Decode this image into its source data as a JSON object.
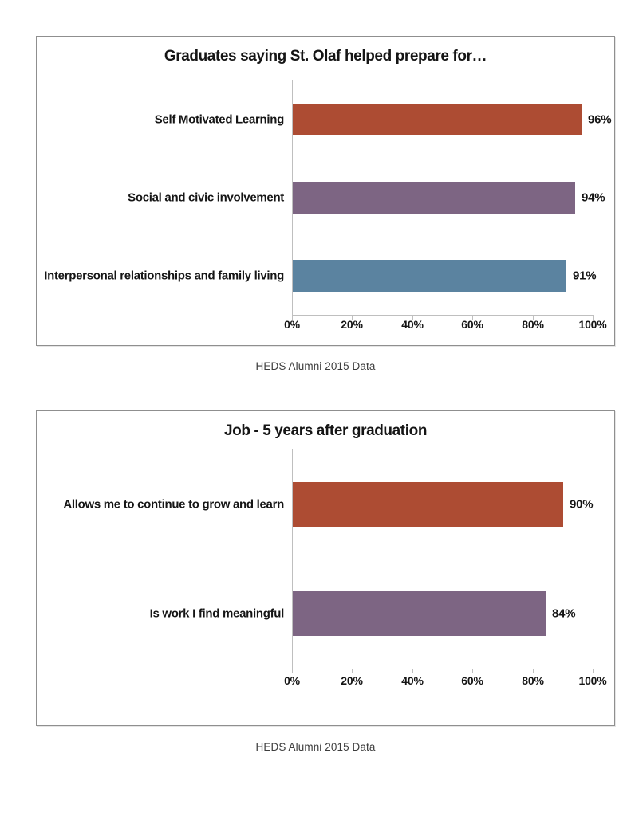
{
  "chart_data": [
    {
      "type": "bar",
      "orientation": "horizontal",
      "title": "Graduates saying St. Olaf helped prepare for…",
      "categories": [
        "Self Motivated Learning",
        "Social and civic involvement",
        "Interpersonal relationships and family living"
      ],
      "values": [
        96,
        94,
        91
      ],
      "value_labels": [
        "96%",
        "94%",
        "91%"
      ],
      "bar_colors": [
        "#AD4C33",
        "#7D6583",
        "#5B83A0"
      ],
      "x_ticks": [
        "0%",
        "20%",
        "40%",
        "60%",
        "80%",
        "100%"
      ],
      "xlim": [
        0,
        100
      ],
      "grid": false,
      "legend": "none",
      "source_note": "HEDS Alumni 2015 Data"
    },
    {
      "type": "bar",
      "orientation": "horizontal",
      "title": "Job - 5 years after graduation",
      "categories": [
        "Allows me to continue to grow and learn",
        "Is work I find meaningful"
      ],
      "values": [
        90,
        84
      ],
      "value_labels": [
        "90%",
        "84%"
      ],
      "bar_colors": [
        "#AD4C33",
        "#7D6583"
      ],
      "x_ticks": [
        "0%",
        "20%",
        "40%",
        "60%",
        "80%",
        "100%"
      ],
      "xlim": [
        0,
        100
      ],
      "grid": false,
      "legend": "none",
      "source_note": "HEDS Alumni 2015 Data"
    }
  ],
  "colors": {
    "axis": "#bfbfbf",
    "frame_border": "#8f8f8f",
    "label_text": "#151515",
    "caption_text": "#3d3d3d",
    "background": "#ffffff"
  }
}
